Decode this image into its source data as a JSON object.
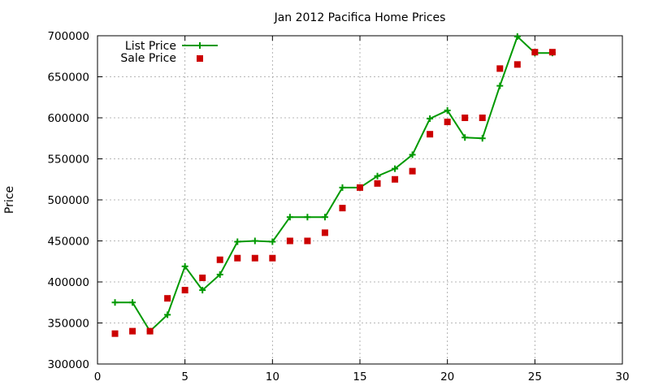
{
  "chart_data": {
    "type": "line",
    "title": "Jan 2012 Pacifica Home Prices",
    "xlabel": "",
    "ylabel": "Price",
    "xlim": [
      0,
      30
    ],
    "ylim": [
      300000,
      700000
    ],
    "xticks": [
      0,
      5,
      10,
      15,
      20,
      25,
      30
    ],
    "yticks": [
      300000,
      350000,
      400000,
      450000,
      500000,
      550000,
      600000,
      650000,
      700000
    ],
    "grid": true,
    "legend_position": "top-left",
    "series": [
      {
        "name": "List Price",
        "style": "line+cross",
        "color": "#009900",
        "x": [
          1,
          2,
          3,
          4,
          5,
          6,
          7,
          8,
          9,
          10,
          11,
          12,
          13,
          14,
          15,
          16,
          17,
          18,
          19,
          20,
          21,
          22,
          23,
          24,
          25,
          26
        ],
        "y": [
          375000,
          375000,
          340000,
          360000,
          419000,
          390000,
          409000,
          449000,
          450000,
          449000,
          479000,
          479000,
          479000,
          515000,
          515000,
          529000,
          538000,
          555000,
          599000,
          609000,
          576000,
          575000,
          639000,
          699000,
          679000,
          679000
        ]
      },
      {
        "name": "Sale Price",
        "style": "square",
        "color": "#cc0000",
        "x": [
          1,
          2,
          3,
          4,
          5,
          6,
          7,
          8,
          9,
          10,
          11,
          12,
          13,
          14,
          15,
          16,
          17,
          18,
          19,
          20,
          21,
          22,
          23,
          24,
          25,
          26
        ],
        "y": [
          337000,
          340000,
          340000,
          380000,
          390000,
          405000,
          427000,
          429000,
          429000,
          429000,
          450000,
          450000,
          460000,
          490000,
          515000,
          520000,
          525000,
          535000,
          580000,
          595000,
          600000,
          600000,
          660000,
          665000,
          680000,
          680000
        ]
      }
    ]
  }
}
